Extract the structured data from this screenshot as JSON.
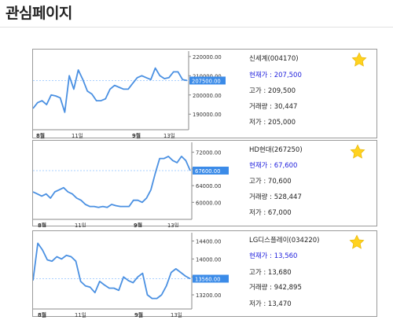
{
  "page": {
    "title": "관심페이지"
  },
  "stocks": [
    {
      "name": "신세계(004170)",
      "price_label": "현재가 : 207,500",
      "high_label": "고가 : 209,500",
      "volume_label": "거래량 : 30,447",
      "low_label": "저가 : 205,000",
      "favorite_icon": "star-icon",
      "chart_data": {
        "type": "line",
        "x_tick_labels": [
          "8월",
          "11일",
          "9월",
          "13일"
        ],
        "y_tick_labels": [
          "220000.00",
          "210000.00",
          "200000.00",
          "190000.00"
        ],
        "y_ticks": [
          220000,
          210000,
          200000,
          190000
        ],
        "ylim": [
          186000,
          222000
        ],
        "current_value": 207500,
        "current_label": "207500.00",
        "values": [
          193000,
          196000,
          197000,
          195000,
          200000,
          199500,
          198500,
          191000,
          210000,
          203000,
          213000,
          208000,
          202000,
          200500,
          197000,
          197000,
          198000,
          203000,
          205000,
          204000,
          203000,
          203000,
          206000,
          209000,
          210000,
          209000,
          208000,
          214000,
          210000,
          208500,
          209000,
          212000,
          212000,
          208000,
          207500
        ]
      }
    },
    {
      "name": "HD현대(267250)",
      "price_label": "현재가 : 67,600",
      "high_label": "고가 : 70,600",
      "volume_label": "거래량 : 528,447",
      "low_label": "저가 : 67,000",
      "favorite_icon": "star-icon",
      "chart_data": {
        "type": "line",
        "x_tick_labels": [
          "8월",
          "11일",
          "9월",
          "13일"
        ],
        "y_tick_labels": [
          "72000.00",
          "68000.00",
          "64000.00",
          "60000.00"
        ],
        "y_ticks": [
          72000,
          68000,
          64000,
          60000
        ],
        "ylim": [
          57800,
          74000
        ],
        "current_value": 67600,
        "current_label": "67600.00",
        "values": [
          62500,
          62000,
          61500,
          62000,
          61000,
          62500,
          63000,
          63500,
          62500,
          62000,
          61000,
          60500,
          59500,
          59000,
          59000,
          58800,
          59000,
          58800,
          59500,
          59200,
          59000,
          59000,
          59000,
          60500,
          60500,
          60000,
          61000,
          63000,
          67000,
          70500,
          70500,
          71000,
          70000,
          69500,
          71000,
          70000,
          67600
        ]
      }
    },
    {
      "name": "LG디스플레이(034220)",
      "price_label": "현재가 : 13,560",
      "high_label": "고가 : 13,680",
      "volume_label": "거래량 : 942,895",
      "low_label": "저가 : 13,470",
      "favorite_icon": "star-icon",
      "chart_data": {
        "type": "line",
        "x_tick_labels": [
          "8월",
          "11일",
          "9월",
          "13일"
        ],
        "y_tick_labels": [
          "14400.00",
          "14000.00",
          "13600.00",
          "13200.00"
        ],
        "y_ticks": [
          14400,
          14000,
          13600,
          13200
        ],
        "ylim": [
          13060,
          14550
        ],
        "current_value": 13560,
        "current_label": "13560.00",
        "values": [
          13520,
          14350,
          14200,
          13980,
          13950,
          14050,
          14000,
          14080,
          14050,
          13950,
          13500,
          13400,
          13370,
          13250,
          13500,
          13420,
          13350,
          13350,
          13300,
          13600,
          13520,
          13470,
          13600,
          13680,
          13200,
          13120,
          13120,
          13200,
          13400,
          13700,
          13780,
          13700,
          13620,
          13560
        ]
      }
    }
  ]
}
